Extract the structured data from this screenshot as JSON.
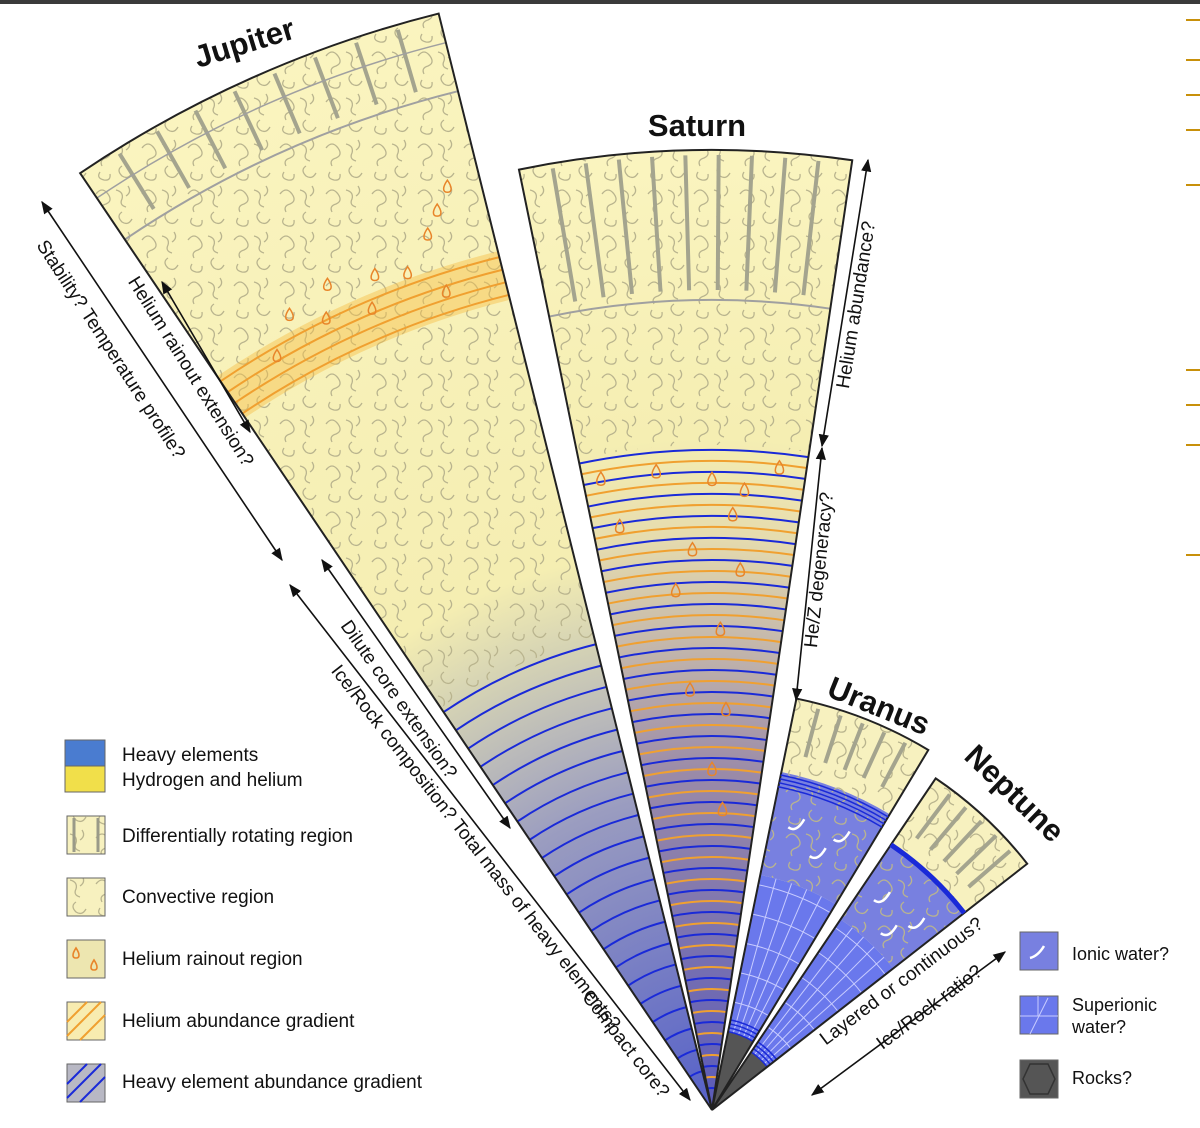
{
  "planets": [
    {
      "name": "Jupiter"
    },
    {
      "name": "Saturn"
    },
    {
      "name": "Uranus"
    },
    {
      "name": "Neptune"
    }
  ],
  "annotations": [
    "Stability? Temperature profile?",
    "Helium rainout extension?",
    "Dilute core extension?",
    "Ice/Rock composition? Total mass of heavy elements?",
    "Compact core?",
    "Helium abundance?",
    "He/Z degeneracy?",
    "Layered or continuous?",
    "Ice/Rock ratio?"
  ],
  "legend_left": [
    "Heavy elements",
    "Hydrogen and helium",
    "Differentially rotating region",
    "Convective region",
    "Helium rainout region",
    "Helium abundance gradient",
    "Heavy element abundance gradient"
  ],
  "legend_right": [
    "Ionic water?",
    "Superionic water?",
    "Rocks?"
  ]
}
